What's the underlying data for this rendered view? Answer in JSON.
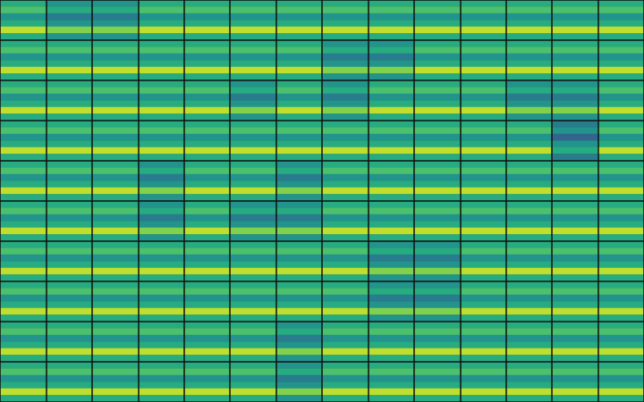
{
  "chart_data": {
    "type": "heatmap",
    "tick_labels": false,
    "grid": true,
    "color_range": [
      0,
      9
    ],
    "cells": [
      [
        5,
        4,
        4,
        5,
        5,
        5,
        5,
        5,
        5,
        5,
        5,
        5,
        5,
        5
      ],
      [
        6,
        5,
        5,
        6,
        6,
        6,
        6,
        6,
        6,
        6,
        6,
        6,
        6,
        6
      ],
      [
        4,
        3,
        3,
        4,
        4,
        4,
        4,
        4,
        4,
        4,
        4,
        4,
        4,
        4
      ],
      [
        5,
        4,
        4,
        5,
        5,
        5,
        5,
        5,
        5,
        5,
        5,
        5,
        5,
        5
      ],
      [
        8,
        7,
        7,
        8,
        8,
        8,
        8,
        8,
        8,
        8,
        8,
        8,
        8,
        8
      ],
      [
        5,
        4,
        4,
        5,
        5,
        5,
        5,
        5,
        5,
        5,
        5,
        5,
        5,
        5
      ],
      [
        5,
        5,
        5,
        5,
        5,
        5,
        5,
        4,
        4,
        5,
        5,
        5,
        5,
        5
      ],
      [
        6,
        6,
        6,
        6,
        6,
        6,
        6,
        5,
        5,
        6,
        6,
        6,
        6,
        6
      ],
      [
        4,
        4,
        4,
        4,
        4,
        4,
        4,
        3,
        3,
        4,
        4,
        4,
        4,
        4
      ],
      [
        5,
        5,
        5,
        5,
        5,
        5,
        5,
        4,
        4,
        5,
        5,
        5,
        5,
        5
      ],
      [
        8,
        8,
        8,
        8,
        8,
        8,
        8,
        7,
        7,
        8,
        8,
        8,
        8,
        8
      ],
      [
        5,
        5,
        5,
        5,
        5,
        5,
        5,
        4,
        4,
        5,
        5,
        5,
        5,
        5
      ],
      [
        5,
        5,
        5,
        5,
        5,
        4,
        5,
        4,
        5,
        5,
        5,
        4,
        4,
        5
      ],
      [
        6,
        6,
        6,
        6,
        6,
        5,
        6,
        5,
        6,
        6,
        6,
        5,
        5,
        6
      ],
      [
        4,
        4,
        4,
        4,
        4,
        3,
        4,
        3,
        4,
        4,
        4,
        3,
        3,
        4
      ],
      [
        5,
        5,
        5,
        5,
        5,
        4,
        5,
        4,
        5,
        5,
        5,
        4,
        4,
        5
      ],
      [
        8,
        8,
        8,
        8,
        8,
        7,
        8,
        7,
        8,
        8,
        8,
        7,
        7,
        8
      ],
      [
        5,
        5,
        5,
        5,
        5,
        4,
        5,
        4,
        5,
        5,
        5,
        4,
        4,
        5
      ],
      [
        5,
        5,
        5,
        5,
        5,
        5,
        5,
        5,
        5,
        5,
        5,
        5,
        3,
        5
      ],
      [
        6,
        6,
        6,
        6,
        6,
        6,
        6,
        6,
        6,
        6,
        6,
        6,
        4,
        6
      ],
      [
        4,
        4,
        4,
        4,
        4,
        4,
        4,
        4,
        4,
        4,
        4,
        4,
        2,
        4
      ],
      [
        5,
        5,
        5,
        5,
        5,
        5,
        5,
        5,
        5,
        5,
        5,
        5,
        4,
        5
      ],
      [
        8,
        8,
        8,
        8,
        8,
        8,
        8,
        8,
        8,
        8,
        8,
        8,
        5,
        8
      ],
      [
        5,
        5,
        5,
        5,
        5,
        5,
        5,
        5,
        5,
        5,
        5,
        5,
        3,
        5
      ],
      [
        5,
        5,
        5,
        4,
        5,
        5,
        4,
        5,
        5,
        5,
        5,
        5,
        5,
        5
      ],
      [
        6,
        6,
        6,
        5,
        6,
        6,
        5,
        6,
        6,
        6,
        6,
        6,
        6,
        6
      ],
      [
        4,
        4,
        4,
        3,
        4,
        4,
        3,
        4,
        4,
        4,
        4,
        4,
        4,
        4
      ],
      [
        5,
        5,
        5,
        4,
        5,
        5,
        4,
        5,
        5,
        5,
        5,
        5,
        5,
        5
      ],
      [
        8,
        8,
        8,
        7,
        8,
        8,
        7,
        8,
        8,
        8,
        8,
        8,
        8,
        8
      ],
      [
        5,
        5,
        5,
        4,
        5,
        5,
        4,
        5,
        5,
        5,
        5,
        5,
        5,
        5
      ],
      [
        5,
        5,
        5,
        4,
        5,
        4,
        4,
        5,
        5,
        5,
        5,
        5,
        5,
        5
      ],
      [
        6,
        6,
        6,
        5,
        6,
        5,
        5,
        6,
        6,
        6,
        6,
        6,
        6,
        6
      ],
      [
        4,
        4,
        4,
        3,
        4,
        3,
        3,
        4,
        4,
        4,
        4,
        4,
        4,
        4
      ],
      [
        5,
        5,
        5,
        4,
        5,
        4,
        4,
        5,
        5,
        5,
        5,
        5,
        5,
        5
      ],
      [
        8,
        8,
        8,
        7,
        8,
        7,
        7,
        8,
        8,
        8,
        8,
        8,
        8,
        8
      ],
      [
        5,
        5,
        5,
        4,
        5,
        4,
        4,
        5,
        5,
        5,
        5,
        5,
        5,
        5
      ],
      [
        5,
        5,
        5,
        5,
        5,
        5,
        5,
        5,
        4,
        4,
        5,
        5,
        5,
        5
      ],
      [
        6,
        6,
        6,
        6,
        6,
        6,
        6,
        6,
        5,
        5,
        6,
        6,
        6,
        6
      ],
      [
        4,
        4,
        4,
        4,
        4,
        4,
        4,
        4,
        3,
        3,
        4,
        4,
        4,
        4
      ],
      [
        5,
        5,
        5,
        5,
        5,
        5,
        5,
        5,
        4,
        4,
        5,
        5,
        5,
        5
      ],
      [
        8,
        8,
        8,
        8,
        8,
        8,
        8,
        8,
        7,
        7,
        8,
        8,
        8,
        8
      ],
      [
        5,
        5,
        5,
        5,
        5,
        5,
        5,
        5,
        4,
        4,
        5,
        5,
        5,
        5
      ],
      [
        5,
        5,
        5,
        5,
        5,
        5,
        5,
        5,
        4,
        4,
        5,
        5,
        5,
        5
      ],
      [
        6,
        6,
        6,
        6,
        6,
        6,
        6,
        6,
        5,
        5,
        6,
        6,
        6,
        6
      ],
      [
        4,
        4,
        4,
        4,
        4,
        4,
        4,
        4,
        3,
        3,
        4,
        4,
        4,
        4
      ],
      [
        5,
        5,
        5,
        5,
        5,
        5,
        5,
        5,
        4,
        4,
        5,
        5,
        5,
        5
      ],
      [
        8,
        8,
        8,
        8,
        8,
        8,
        8,
        8,
        7,
        7,
        8,
        8,
        8,
        8
      ],
      [
        5,
        5,
        5,
        5,
        5,
        5,
        5,
        5,
        4,
        4,
        5,
        5,
        5,
        5
      ],
      [
        5,
        5,
        5,
        5,
        5,
        5,
        4,
        5,
        5,
        5,
        5,
        5,
        5,
        5
      ],
      [
        6,
        6,
        6,
        6,
        6,
        6,
        5,
        6,
        6,
        6,
        6,
        6,
        6,
        6
      ],
      [
        4,
        4,
        4,
        4,
        4,
        4,
        3,
        4,
        4,
        4,
        4,
        4,
        4,
        4
      ],
      [
        5,
        5,
        5,
        5,
        5,
        5,
        4,
        5,
        5,
        5,
        5,
        5,
        5,
        5
      ],
      [
        8,
        8,
        8,
        8,
        8,
        8,
        7,
        8,
        8,
        8,
        8,
        8,
        8,
        8
      ],
      [
        5,
        5,
        5,
        5,
        5,
        5,
        4,
        5,
        5,
        5,
        5,
        5,
        5,
        5
      ],
      [
        5,
        5,
        5,
        5,
        5,
        5,
        4,
        5,
        5,
        5,
        5,
        5,
        5,
        5
      ],
      [
        6,
        6,
        6,
        6,
        6,
        6,
        5,
        6,
        6,
        6,
        6,
        6,
        6,
        6
      ],
      [
        4,
        4,
        4,
        4,
        4,
        4,
        3,
        4,
        4,
        4,
        4,
        4,
        4,
        4
      ],
      [
        5,
        5,
        5,
        5,
        5,
        5,
        4,
        5,
        5,
        5,
        5,
        5,
        5,
        5
      ],
      [
        8,
        8,
        8,
        8,
        8,
        8,
        7,
        8,
        8,
        8,
        8,
        8,
        8,
        8
      ],
      [
        5,
        5,
        5,
        5,
        5,
        5,
        4,
        5,
        5,
        5,
        5,
        5,
        5,
        5
      ]
    ]
  }
}
